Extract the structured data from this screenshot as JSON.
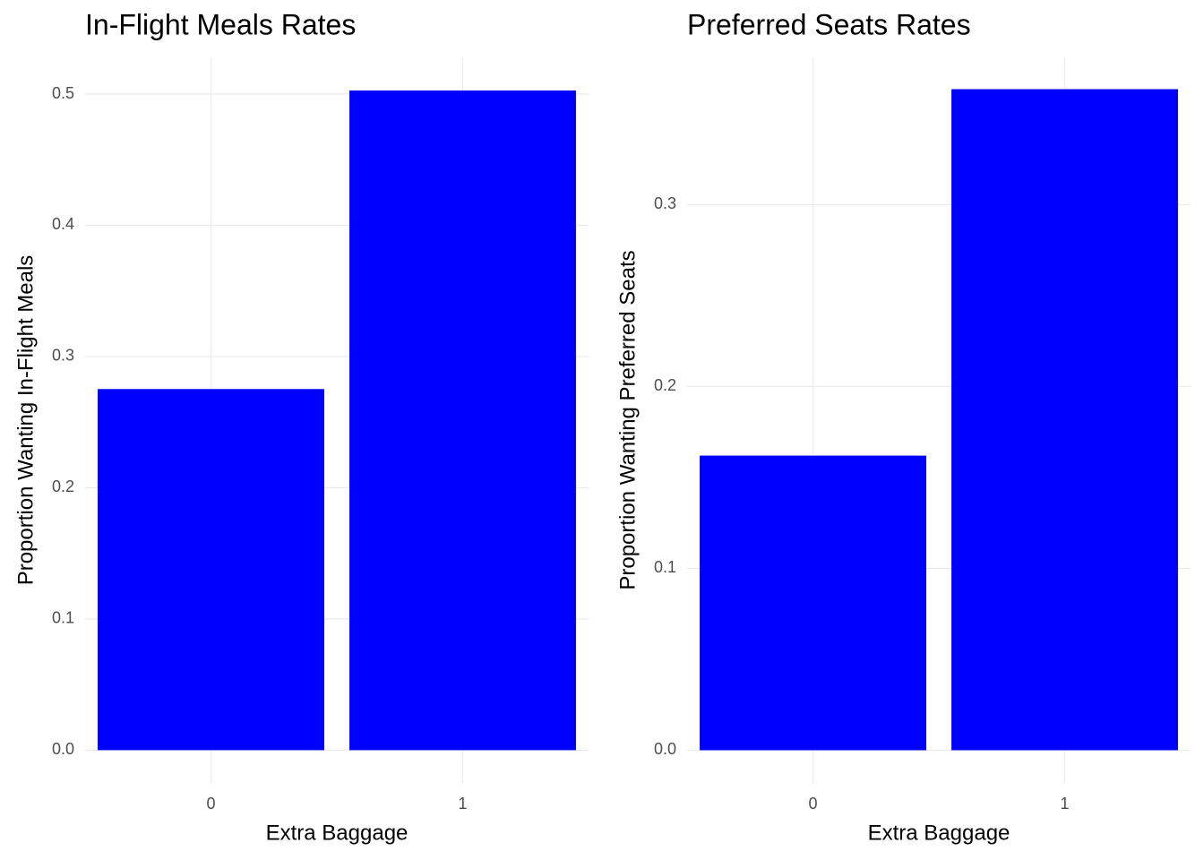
{
  "chart_data": [
    {
      "type": "bar",
      "title": "In-Flight Meals Rates",
      "x_label": "Extra Baggage",
      "y_label": "Proportion Wanting In-Flight Meals",
      "categories": [
        "0",
        "1"
      ],
      "values": [
        0.2752,
        0.5027
      ],
      "color": "#0000ff",
      "ylim": [
        -0.025,
        0.528
      ],
      "yticks": [
        {
          "value": 0,
          "label": "0.0"
        },
        0.1,
        0.2,
        0.3,
        0.4,
        0.5
      ],
      "grid": true
    },
    {
      "type": "bar",
      "title": "Preferred Seats Rates",
      "x_label": "Extra Baggage",
      "y_label": "Proportion Wanting Preferred Seats",
      "categories": [
        "0",
        "1"
      ],
      "values": [
        0.162,
        0.3635
      ],
      "color": "#0000ff",
      "ylim": [
        -0.018,
        0.381
      ],
      "yticks": [
        {
          "value": 0,
          "label": "0.0"
        },
        0.1,
        0.2,
        0.3
      ],
      "grid": true
    }
  ]
}
